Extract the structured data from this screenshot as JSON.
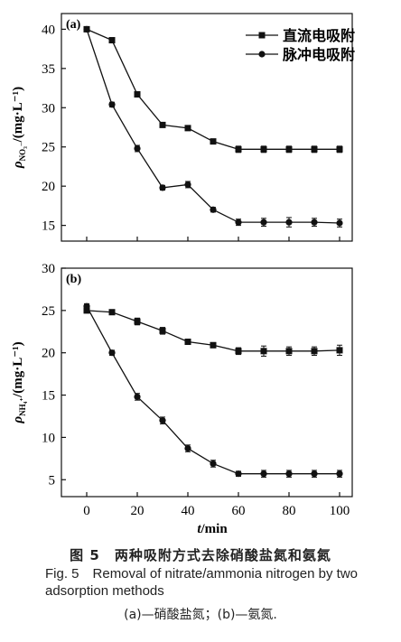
{
  "chart_data": [
    {
      "type": "line",
      "panel_label": "(a)",
      "ylabel_rho": "ρ",
      "ylabel_sub": "NO₃⁻",
      "ylabel_unit": "/(mg·L⁻¹)",
      "xlabel": "",
      "x": [
        0,
        10,
        20,
        30,
        40,
        50,
        60,
        70,
        80,
        90,
        100
      ],
      "xlim": [
        -10,
        105
      ],
      "ylim": [
        13,
        42
      ],
      "yticks": [
        15,
        20,
        25,
        30,
        35,
        40
      ],
      "legend_position": "top-right",
      "series": [
        {
          "name": "直流电吸附",
          "marker": "square",
          "values": [
            40.0,
            38.6,
            31.7,
            27.8,
            27.4,
            25.7,
            24.7,
            24.7,
            24.7,
            24.7,
            24.7
          ],
          "errors": [
            0.2,
            0.3,
            0.3,
            0.3,
            0.3,
            0.3,
            0.4,
            0.4,
            0.4,
            0.4,
            0.4
          ]
        },
        {
          "name": "脉冲电吸附",
          "marker": "circle",
          "values": [
            40.0,
            30.4,
            24.8,
            19.8,
            20.2,
            17.0,
            15.4,
            15.4,
            15.4,
            15.4,
            15.3
          ],
          "errors": [
            0.2,
            0.3,
            0.4,
            0.3,
            0.4,
            0.3,
            0.4,
            0.5,
            0.6,
            0.5,
            0.5
          ]
        }
      ]
    },
    {
      "type": "line",
      "panel_label": "(b)",
      "ylabel_rho": "ρ",
      "ylabel_sub": "NH₄⁺",
      "ylabel_unit": "/(mg·L⁻¹)",
      "xlabel_italic": "t",
      "xlabel_unit": "/min",
      "x": [
        0,
        10,
        20,
        30,
        40,
        50,
        60,
        70,
        80,
        90,
        100
      ],
      "xlim": [
        -10,
        105
      ],
      "xticks": [
        0,
        20,
        40,
        60,
        80,
        100
      ],
      "ylim": [
        3,
        30
      ],
      "yticks": [
        5,
        10,
        15,
        20,
        25,
        30
      ],
      "series": [
        {
          "marker": "square",
          "values": [
            25.0,
            24.8,
            23.7,
            22.6,
            21.3,
            20.9,
            20.2,
            20.2,
            20.2,
            20.2,
            20.3
          ],
          "errors": [
            0.3,
            0.2,
            0.4,
            0.4,
            0.3,
            0.3,
            0.4,
            0.6,
            0.5,
            0.5,
            0.6
          ]
        },
        {
          "marker": "circle",
          "values": [
            25.5,
            20.0,
            14.8,
            12.0,
            8.7,
            6.9,
            5.7,
            5.7,
            5.7,
            5.7,
            5.7
          ],
          "errors": [
            0.3,
            0.3,
            0.4,
            0.4,
            0.4,
            0.4,
            0.3,
            0.4,
            0.4,
            0.4,
            0.4
          ]
        }
      ]
    }
  ],
  "caption": {
    "zh": "图 5　两种吸附方式去除硝酸盐氮和氨氮",
    "en": "Fig. 5　Removal of nitrate/ammonia nitrogen by two adsorption methods",
    "sub": "(a)—硝酸盐氮；(b)—氨氮."
  }
}
